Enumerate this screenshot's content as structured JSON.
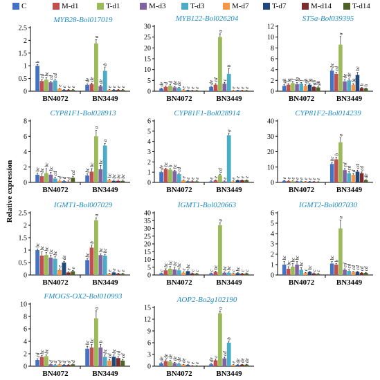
{
  "legend": [
    {
      "label": "C",
      "color": "#4472c4"
    },
    {
      "label": "M-d1",
      "color": "#c0504d"
    },
    {
      "label": "T-d1",
      "color": "#9bbb59"
    },
    {
      "label": "M-d3",
      "color": "#8064a2"
    },
    {
      "label": "T-d3",
      "color": "#4bacc6"
    },
    {
      "label": "M-d7",
      "color": "#f79646"
    },
    {
      "label": "T-d7",
      "color": "#1f497d"
    },
    {
      "label": "M-d14",
      "color": "#7b2c2c"
    },
    {
      "label": "T-d14",
      "color": "#4f6228"
    }
  ],
  "y_label": "Relative expression",
  "chart_data": [
    {
      "type": "bar",
      "title": "MYB28-Bol017019",
      "categories": [
        "BN4072",
        "BN3449"
      ],
      "ylim": [
        0,
        2.5
      ],
      "yticks": [
        0,
        0.5,
        1,
        1.5,
        2,
        2.5
      ],
      "values": [
        [
          1.0,
          0.4,
          0.45,
          0.35,
          0.42,
          0.1,
          0.05,
          0.05,
          0.05
        ],
        [
          0.25,
          0.28,
          1.88,
          0.2,
          0.8,
          0.05,
          0.05,
          0.05,
          0.05
        ]
      ],
      "errors": [
        [
          0.05,
          0.05,
          0.08,
          0.04,
          0.05,
          0.02,
          0.02,
          0.02,
          0.02
        ],
        [
          0.04,
          0.04,
          0.15,
          0.03,
          0.15,
          0.02,
          0.02,
          0.02,
          0.02
        ]
      ],
      "letters": [
        [
          "b",
          "cd",
          "bc",
          "cd",
          "cd",
          "e",
          "e",
          "e",
          "e"
        ],
        [
          "de",
          "de",
          "a",
          "de",
          "b",
          "e",
          "e",
          "e",
          "e"
        ]
      ]
    },
    {
      "type": "bar",
      "title": "MYB122-Bol026204",
      "categories": [
        "BN4072",
        "BN3449"
      ],
      "ylim": [
        0,
        30
      ],
      "yticks": [
        0,
        5,
        10,
        15,
        20,
        25,
        30
      ],
      "values": [
        [
          1.2,
          2.0,
          2.5,
          1.8,
          1.5,
          0.6,
          0.4,
          0.3,
          0.3
        ],
        [
          2.0,
          3.0,
          25.0,
          3.5,
          8.0,
          0.4,
          0.3,
          0.3,
          0.3
        ]
      ],
      "errors": [
        [
          0.3,
          0.4,
          0.5,
          0.3,
          0.3,
          0.1,
          0.1,
          0.1,
          0.1
        ],
        [
          0.3,
          0.5,
          1.5,
          0.6,
          2.5,
          0.1,
          0.1,
          0.1,
          0.1
        ]
      ],
      "letters": [
        [
          "de",
          "d",
          "d",
          "de",
          "de",
          "e",
          "e",
          "e",
          "e"
        ],
        [
          "de",
          "cd",
          "a",
          "c",
          "b",
          "e",
          "e",
          "e",
          "e"
        ]
      ]
    },
    {
      "type": "bar",
      "title": "ST5a-Bol039395",
      "categories": [
        "BN4072",
        "BN3449"
      ],
      "ylim": [
        0,
        12
      ],
      "yticks": [
        0,
        2,
        4,
        6,
        8,
        10,
        12
      ],
      "values": [
        [
          1.0,
          1.2,
          1.5,
          1.3,
          1.4,
          1.0,
          1.2,
          0.8,
          0.7
        ],
        [
          3.8,
          3.2,
          8.6,
          1.8,
          2.0,
          1.2,
          3.0,
          0.6,
          0.5
        ]
      ],
      "errors": [
        [
          0.2,
          0.2,
          0.3,
          0.3,
          0.2,
          0.2,
          0.2,
          0.1,
          0.1
        ],
        [
          0.3,
          0.3,
          1.5,
          0.3,
          0.3,
          0.2,
          0.5,
          0.1,
          0.1
        ]
      ],
      "letters": [
        [
          "gh",
          "fg",
          "f",
          "fg",
          "f",
          "gh",
          "fg",
          "gh",
          "gh"
        ],
        [
          "bc",
          "cd",
          "a",
          "de",
          "de",
          "fg",
          "bc",
          "h",
          "h"
        ]
      ]
    },
    {
      "type": "bar",
      "title": "CYP81F1-Bol028913",
      "categories": [
        "BN4072",
        "BN3449"
      ],
      "ylim": [
        0,
        8
      ],
      "yticks": [
        0,
        2,
        4,
        6,
        8
      ],
      "values": [
        [
          1.0,
          0.8,
          1.2,
          1.0,
          0.5,
          0.2,
          0.15,
          0.1,
          0.6
        ],
        [
          0.9,
          1.4,
          6.0,
          1.7,
          4.8,
          0.3,
          0.2,
          0.2,
          0.2
        ]
      ],
      "errors": [
        [
          0.2,
          0.3,
          0.6,
          0.3,
          0.2,
          0.1,
          0.1,
          0.1,
          0.2
        ],
        [
          0.2,
          0.4,
          0.8,
          0.5,
          0.3,
          0.1,
          0.1,
          0.1,
          0.1
        ]
      ],
      "letters": [
        [
          "bc",
          "bc",
          "bc",
          "bc",
          "cd",
          "d",
          "d",
          "d",
          "cd"
        ],
        [
          "bc",
          "bc",
          "a",
          "bc",
          "a",
          "bc",
          "bc",
          "bc",
          "bc"
        ]
      ]
    },
    {
      "type": "bar",
      "title": "CYP81F1-Bol028914",
      "categories": [
        "BN4072",
        "BN3449"
      ],
      "ylim": [
        0,
        6
      ],
      "yticks": [
        0,
        1,
        2,
        3,
        4,
        5,
        6
      ],
      "values": [
        [
          1.0,
          1.3,
          1.25,
          1.1,
          0.8,
          0.2,
          0.1,
          0.1,
          0.1
        ],
        [
          0.1,
          0.2,
          0.7,
          0.1,
          4.6,
          0.1,
          0.2,
          0.2,
          0.2
        ]
      ],
      "errors": [
        [
          0.1,
          0.1,
          0.1,
          0.1,
          0.1,
          0.05,
          0.05,
          0.05,
          0.05
        ],
        [
          0.05,
          0.05,
          0.1,
          0.05,
          0.2,
          0.05,
          0.05,
          0.05,
          0.05
        ]
      ],
      "letters": [
        [
          "de",
          "bc",
          "b",
          "bc",
          "cd",
          "e",
          "e",
          "e",
          "e"
        ],
        [
          "e",
          "e",
          "cd",
          "e",
          "a",
          "e",
          "e",
          "e",
          "e"
        ]
      ]
    },
    {
      "type": "bar",
      "title": "CYP81F2-Bol014239",
      "categories": [
        "BN4072",
        "BN3449"
      ],
      "ylim": [
        0,
        40
      ],
      "yticks": [
        0,
        10,
        20,
        30,
        40
      ],
      "values": [
        [
          1.0,
          0.9,
          0.8,
          0.7,
          0.7,
          0.6,
          0.5,
          0.5,
          0.4
        ],
        [
          12.0,
          15.0,
          26.0,
          8.0,
          6.0,
          5.0,
          7.0,
          6.0,
          1.5
        ]
      ],
      "errors": [
        [
          0.2,
          0.2,
          0.2,
          0.2,
          0.2,
          0.1,
          0.1,
          0.1,
          0.1
        ],
        [
          1.0,
          1.5,
          3.0,
          1.0,
          1.0,
          0.8,
          1.0,
          0.8,
          0.3
        ]
      ],
      "letters": [
        [
          "e",
          "e",
          "e",
          "e",
          "e",
          "e",
          "e",
          "e",
          "e"
        ],
        [
          "bc",
          "b",
          "a",
          "cd",
          "cd",
          "d",
          "cd",
          "cd",
          "de"
        ]
      ]
    },
    {
      "type": "bar",
      "title": "IGMT1-Bol007029",
      "categories": [
        "BN4072",
        "BN3449"
      ],
      "ylim": [
        0,
        2.5
      ],
      "yticks": [
        0,
        0.5,
        1,
        1.5,
        2,
        2.5
      ],
      "values": [
        [
          1.0,
          0.78,
          0.8,
          0.7,
          0.65,
          0.2,
          0.5,
          0.1,
          0.15
        ],
        [
          0.6,
          1.1,
          2.2,
          0.8,
          0.78,
          0.05,
          0.1,
          0.05,
          0.05
        ]
      ],
      "errors": [
        [
          0.05,
          0.15,
          0.1,
          0.1,
          0.08,
          0.05,
          0.05,
          0.03,
          0.03
        ],
        [
          0.05,
          0.1,
          0.1,
          0.05,
          0.05,
          0.02,
          0.02,
          0.02,
          0.02
        ]
      ],
      "letters": [
        [
          "bc",
          "bc",
          "bc",
          "bc",
          "bc",
          "e",
          "de",
          "e",
          "e"
        ],
        [
          "bc",
          "b",
          "a",
          "bc",
          "bc",
          "e",
          "e",
          "e",
          "e"
        ]
      ]
    },
    {
      "type": "bar",
      "title": "IGMT1-Bol020663",
      "categories": [
        "BN4072",
        "BN3449"
      ],
      "ylim": [
        0,
        40
      ],
      "yticks": [
        0,
        5,
        10,
        15,
        20,
        25,
        30,
        35,
        40
      ],
      "values": [
        [
          1.0,
          3.0,
          4.0,
          3.5,
          3.0,
          1.5,
          2.5,
          1.0,
          0.8
        ],
        [
          1.0,
          2.0,
          32.0,
          1.5,
          1.5,
          1.0,
          1.2,
          0.8,
          1.0
        ]
      ],
      "errors": [
        [
          0.3,
          1.0,
          1.5,
          1.5,
          1.0,
          0.5,
          0.8,
          0.3,
          0.3
        ],
        [
          0.3,
          0.5,
          1.5,
          0.4,
          0.5,
          0.3,
          0.3,
          0.3,
          0.3
        ]
      ],
      "letters": [
        [
          "c",
          "bc",
          "bc",
          "bc",
          "bc",
          "c",
          "bc",
          "c",
          "c"
        ],
        [
          "c",
          "bc",
          "a",
          "bc",
          "bc",
          "c",
          "bc",
          "c",
          "c"
        ]
      ]
    },
    {
      "type": "bar",
      "title": "IGMT2-Bol007030",
      "categories": [
        "BN4072",
        "BN3449"
      ],
      "ylim": [
        0,
        6
      ],
      "yticks": [
        0,
        1,
        2,
        3,
        4,
        5,
        6
      ],
      "values": [
        [
          1.0,
          0.6,
          0.8,
          1.0,
          0.5,
          0.2,
          0.3,
          0.15,
          0.1
        ],
        [
          1.1,
          1.0,
          4.5,
          0.5,
          0.4,
          0.3,
          0.3,
          0.2,
          0.2
        ]
      ],
      "errors": [
        [
          0.3,
          0.2,
          0.3,
          0.3,
          0.2,
          0.05,
          0.05,
          0.05,
          0.05
        ],
        [
          0.2,
          0.1,
          0.8,
          0.1,
          0.1,
          0.05,
          0.05,
          0.05,
          0.05
        ]
      ],
      "letters": [
        [
          "bc",
          "bc",
          "bc",
          "bc",
          "bc",
          "c",
          "bc",
          "c",
          "c"
        ],
        [
          "bc",
          "b",
          "a",
          "cd",
          "cd",
          "cd",
          "cd",
          "cd",
          "cd"
        ]
      ]
    },
    {
      "type": "bar",
      "title": "FMOGS-OX2-Bol010993",
      "categories": [
        "BN4072",
        "BN3449"
      ],
      "ylim": [
        0,
        10
      ],
      "yticks": [
        0,
        2,
        4,
        6,
        8,
        10
      ],
      "values": [
        [
          1.0,
          1.5,
          1.6,
          0.3,
          0.2,
          0.3,
          0.2,
          0.2,
          0.3
        ],
        [
          2.8,
          3.0,
          7.7,
          3.0,
          1.5,
          0.9,
          1.5,
          1.3,
          0.9
        ]
      ],
      "errors": [
        [
          0.2,
          0.2,
          0.2,
          0.05,
          0.05,
          0.05,
          0.05,
          0.05,
          0.05
        ],
        [
          0.4,
          0.5,
          1.2,
          0.5,
          0.3,
          0.2,
          0.3,
          0.2,
          0.2
        ]
      ],
      "letters": [
        [
          "cd",
          "bc",
          "bc",
          "d",
          "d",
          "d",
          "d",
          "d",
          "d"
        ],
        [
          "bc",
          "bc",
          "a",
          "b",
          "bc",
          "cd",
          "bc",
          "cd",
          "cd"
        ]
      ]
    },
    {
      "type": "bar",
      "title": "AOP2-Bo2g102190",
      "categories": [
        "BN4072",
        "BN3449"
      ],
      "ylim": [
        0,
        15
      ],
      "yticks": [
        0,
        3,
        6,
        9,
        12,
        15
      ],
      "values": [
        [
          0.7,
          1.3,
          1.2,
          0.8,
          0.6,
          0.4,
          0.3,
          0.1,
          0.1
        ],
        [
          0.5,
          1.5,
          13.5,
          2.0,
          6.0,
          0.3,
          0.3,
          0.4,
          0.4
        ]
      ],
      "errors": [
        [
          0.2,
          0.3,
          0.3,
          0.2,
          0.2,
          0.1,
          0.1,
          0.05,
          0.05
        ],
        [
          0.2,
          0.3,
          0.6,
          0.3,
          0.4,
          0.1,
          0.1,
          0.1,
          0.1
        ]
      ],
      "letters": [
        [
          "de",
          "de",
          "de",
          "de",
          "de",
          "de",
          "e",
          "e",
          "e"
        ],
        [
          "de",
          "c",
          "a",
          "cd",
          "b",
          "e",
          "de",
          "de",
          "de"
        ]
      ]
    }
  ]
}
